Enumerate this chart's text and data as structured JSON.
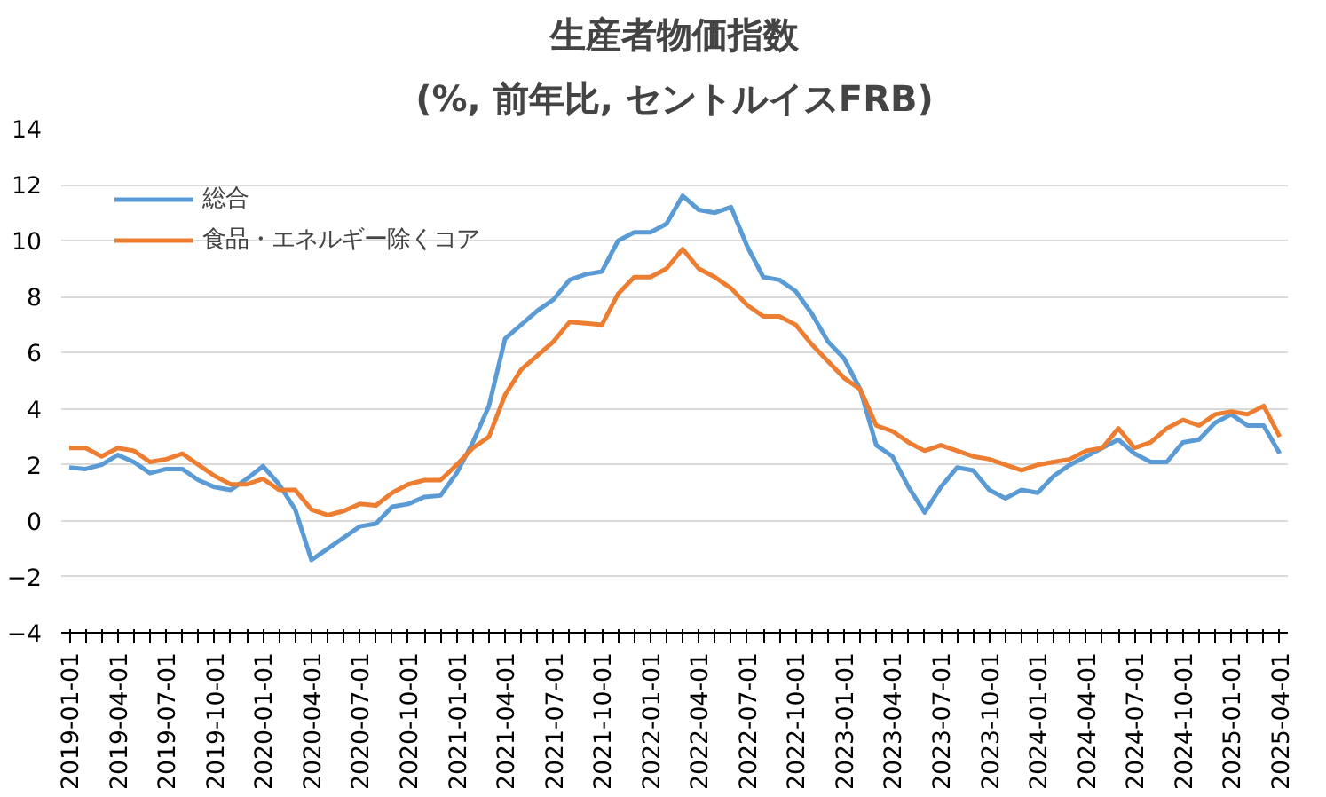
{
  "chart_data": {
    "type": "line",
    "title": "生産者物価指数",
    "subtitle": "(%, 前年比, セントルイスFRB)",
    "categories": [
      "2019-01-01",
      null,
      null,
      "2019-04-01",
      null,
      null,
      "2019-07-01",
      null,
      null,
      "2019-10-01",
      null,
      null,
      "2020-01-01",
      null,
      null,
      "2020-04-01",
      null,
      null,
      "2020-07-01",
      null,
      null,
      "2020-10-01",
      null,
      null,
      "2021-01-01",
      null,
      null,
      "2021-04-01",
      null,
      null,
      "2021-07-01",
      null,
      null,
      "2021-10-01",
      null,
      null,
      "2022-01-01",
      null,
      null,
      "2022-04-01",
      null,
      null,
      "2022-07-01",
      null,
      null,
      "2022-10-01",
      null,
      null,
      "2023-01-01",
      null,
      null,
      "2023-04-01",
      null,
      null,
      "2023-07-01",
      null,
      null,
      "2023-10-01",
      null,
      null,
      "2024-01-01",
      null,
      null,
      "2024-04-01",
      null,
      null,
      "2024-07-01",
      null,
      null,
      "2024-10-01",
      null,
      null,
      "2025-01-01",
      null,
      null,
      "2025-04-01"
    ],
    "series": [
      {
        "name": "総合",
        "color": "#5b9bd5",
        "values": [
          1.9,
          1.85,
          2.0,
          2.35,
          2.1,
          1.7,
          1.85,
          1.85,
          1.45,
          1.2,
          1.1,
          1.5,
          1.95,
          1.3,
          0.4,
          -1.4,
          -1.0,
          -0.6,
          -0.2,
          -0.1,
          0.5,
          0.6,
          0.85,
          0.9,
          1.7,
          2.8,
          4.1,
          6.5,
          7.0,
          7.5,
          7.9,
          8.6,
          8.8,
          8.9,
          10.0,
          10.3,
          10.3,
          10.6,
          11.6,
          11.1,
          11.0,
          11.2,
          9.8,
          8.7,
          8.6,
          8.2,
          7.4,
          6.4,
          5.8,
          4.7,
          2.7,
          2.3,
          1.2,
          0.3,
          1.2,
          1.9,
          1.8,
          1.1,
          0.8,
          1.1,
          1.0,
          1.6,
          2.0,
          2.3,
          2.6,
          2.9,
          2.4,
          2.1,
          2.1,
          2.8,
          2.9,
          3.5,
          3.8,
          3.4,
          3.4,
          2.4
        ]
      },
      {
        "name": "食品・エネルギー除くコア",
        "color": "#ed7d31",
        "values": [
          2.6,
          2.6,
          2.3,
          2.6,
          2.5,
          2.1,
          2.2,
          2.4,
          2.0,
          1.6,
          1.3,
          1.3,
          1.5,
          1.1,
          1.1,
          0.4,
          0.2,
          0.35,
          0.6,
          0.55,
          1.0,
          1.3,
          1.45,
          1.45,
          2.0,
          2.6,
          3.0,
          4.5,
          5.4,
          5.9,
          6.4,
          7.1,
          7.05,
          7.0,
          8.1,
          8.7,
          8.7,
          9.0,
          9.7,
          9.0,
          8.7,
          8.3,
          7.7,
          7.3,
          7.3,
          7.0,
          6.3,
          5.7,
          5.1,
          4.7,
          3.4,
          3.2,
          2.8,
          2.5,
          2.7,
          2.5,
          2.3,
          2.2,
          2.0,
          1.8,
          2.0,
          2.1,
          2.2,
          2.5,
          2.6,
          3.3,
          2.6,
          2.8,
          3.3,
          3.6,
          3.4,
          3.8,
          3.9,
          3.8,
          4.1,
          3.0
        ]
      }
    ],
    "ylim": [
      -4,
      14
    ],
    "yticks": [
      -4,
      -2,
      0,
      2,
      4,
      6,
      8,
      10,
      12,
      14
    ],
    "grid": "y",
    "legend": "top left",
    "marker": "none",
    "line_style": "solid"
  }
}
